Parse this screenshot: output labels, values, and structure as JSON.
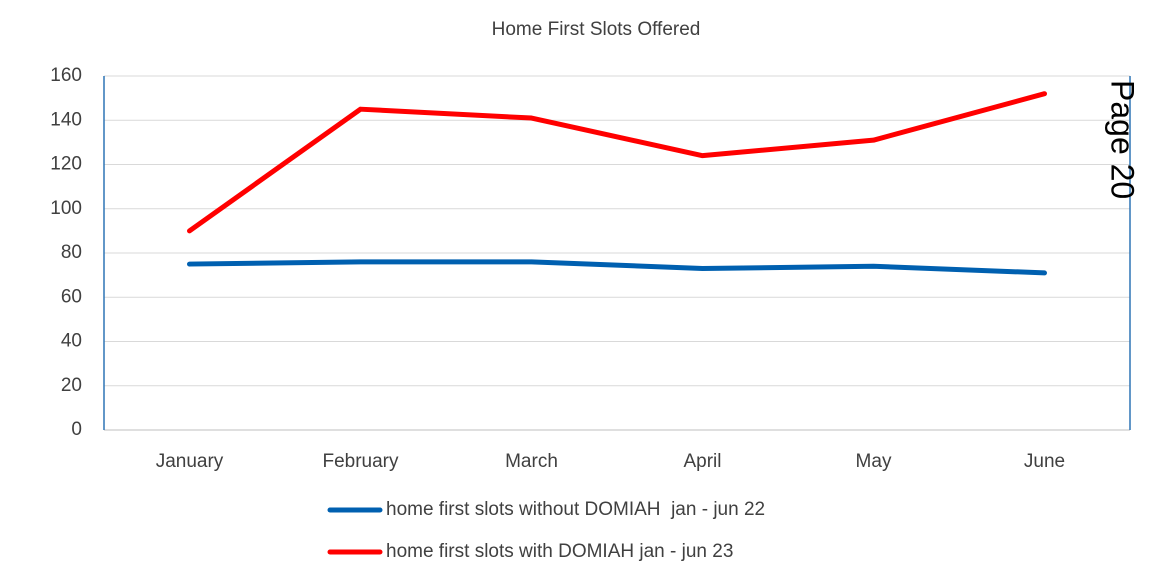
{
  "chart_data": {
    "type": "line",
    "title": "Home First Slots Offered",
    "categories": [
      "January",
      "February",
      "March",
      "April",
      "May",
      "June"
    ],
    "series": [
      {
        "name": "home first slots without DOMIAH  jan - jun 22",
        "color": "#0060b0",
        "values": [
          75,
          76,
          76,
          73,
          74,
          71
        ]
      },
      {
        "name": "home first slots with DOMIAH jan - jun 23",
        "color": "#ff0000",
        "values": [
          90,
          145,
          141,
          124,
          131,
          152
        ]
      }
    ],
    "ylim": [
      0,
      160
    ],
    "yticks": [
      0,
      20,
      40,
      60,
      80,
      100,
      120,
      140,
      160
    ],
    "grid": true,
    "legend": "bottom",
    "annotation": "Page 20"
  }
}
